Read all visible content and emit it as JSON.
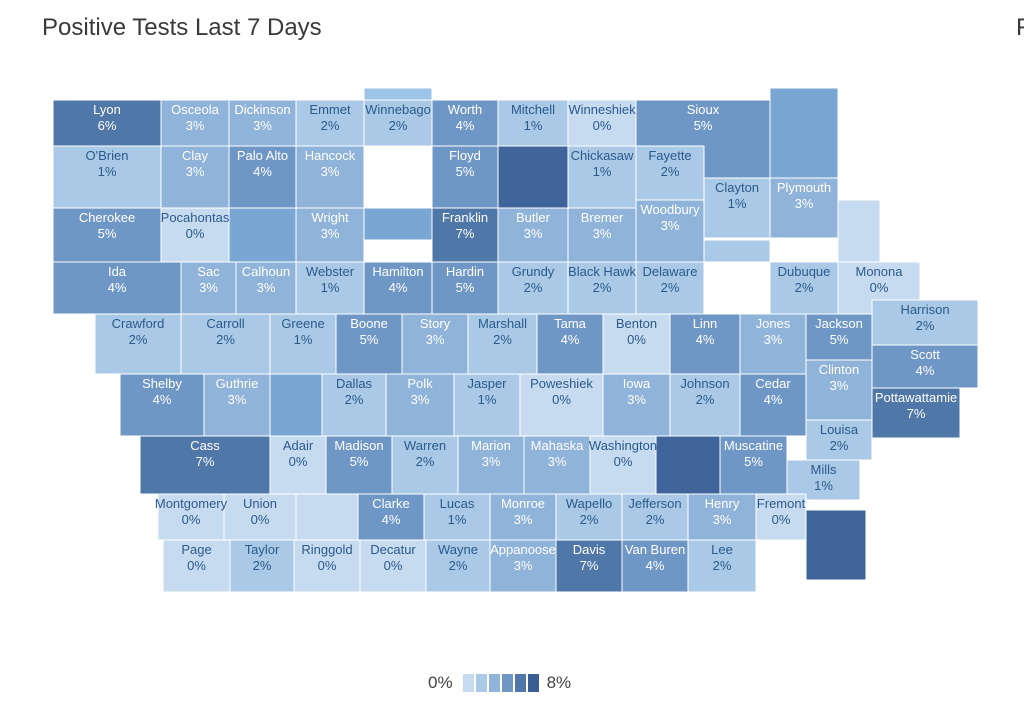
{
  "title": "Positive Tests Last 7 Days",
  "cutoff_label": "F",
  "legend": {
    "min_label": "0%",
    "max_label": "8%",
    "range": [
      0,
      8
    ],
    "colors": [
      "#c6dbef",
      "#a9c9e6",
      "#8fb3d9",
      "#6f97c6",
      "#4f77a8",
      "#3a5e93"
    ]
  },
  "colors": {
    "border": "#ffffff",
    "text_dark": "#2b5a8a",
    "text_light": "#ffffff"
  },
  "counties": [
    {
      "name": "Lyon",
      "value": 6
    },
    {
      "name": "Osceola",
      "value": 3
    },
    {
      "name": "Dickinson",
      "value": 3
    },
    {
      "name": "Emmet",
      "value": 2
    },
    {
      "name": "Winnebago",
      "value": 2
    },
    {
      "name": "Worth",
      "value": 4
    },
    {
      "name": "Mitchell",
      "value": 1
    },
    {
      "name": "Winneshiek",
      "value": 0
    },
    {
      "name": "Sioux",
      "value": 5
    },
    {
      "name": "O'Brien",
      "value": 1
    },
    {
      "name": "Clay",
      "value": 3
    },
    {
      "name": "Palo Alto",
      "value": 4
    },
    {
      "name": "Hancock",
      "value": 3
    },
    {
      "name": "Floyd",
      "value": 5
    },
    {
      "name": "Chickasaw",
      "value": 1
    },
    {
      "name": "Fayette",
      "value": 2
    },
    {
      "name": "Clayton",
      "value": 1
    },
    {
      "name": "Plymouth",
      "value": 3
    },
    {
      "name": "Cherokee",
      "value": 5
    },
    {
      "name": "Pocahontas",
      "value": 0
    },
    {
      "name": "Wright",
      "value": 3
    },
    {
      "name": "Franklin",
      "value": 7
    },
    {
      "name": "Butler",
      "value": 3
    },
    {
      "name": "Bremer",
      "value": 3
    },
    {
      "name": "Woodbury",
      "value": 3
    },
    {
      "name": "Ida",
      "value": 4
    },
    {
      "name": "Sac",
      "value": 3
    },
    {
      "name": "Calhoun",
      "value": 3
    },
    {
      "name": "Webster",
      "value": 1
    },
    {
      "name": "Hamilton",
      "value": 4
    },
    {
      "name": "Hardin",
      "value": 5
    },
    {
      "name": "Grundy",
      "value": 2
    },
    {
      "name": "Black Hawk",
      "value": 2
    },
    {
      "name": "Delaware",
      "value": 2
    },
    {
      "name": "Dubuque",
      "value": 2
    },
    {
      "name": "Monona",
      "value": 0
    },
    {
      "name": "Crawford",
      "value": 2
    },
    {
      "name": "Carroll",
      "value": 2
    },
    {
      "name": "Greene",
      "value": 1
    },
    {
      "name": "Boone",
      "value": 5
    },
    {
      "name": "Story",
      "value": 3
    },
    {
      "name": "Marshall",
      "value": 2
    },
    {
      "name": "Tama",
      "value": 4
    },
    {
      "name": "Benton",
      "value": 0
    },
    {
      "name": "Linn",
      "value": 4
    },
    {
      "name": "Jones",
      "value": 3
    },
    {
      "name": "Jackson",
      "value": 5
    },
    {
      "name": "Harrison",
      "value": 2
    },
    {
      "name": "Shelby",
      "value": 4
    },
    {
      "name": "Guthrie",
      "value": 3
    },
    {
      "name": "Dallas",
      "value": 2
    },
    {
      "name": "Polk",
      "value": 3
    },
    {
      "name": "Jasper",
      "value": 1
    },
    {
      "name": "Poweshiek",
      "value": 0
    },
    {
      "name": "Iowa",
      "value": 3
    },
    {
      "name": "Johnson",
      "value": 2
    },
    {
      "name": "Cedar",
      "value": 4
    },
    {
      "name": "Clinton",
      "value": 3
    },
    {
      "name": "Scott",
      "value": 4
    },
    {
      "name": "Pottawattamie",
      "value": 7
    },
    {
      "name": "Cass",
      "value": 7
    },
    {
      "name": "Adair",
      "value": 0
    },
    {
      "name": "Madison",
      "value": 5
    },
    {
      "name": "Warren",
      "value": 2
    },
    {
      "name": "Marion",
      "value": 3
    },
    {
      "name": "Mahaska",
      "value": 3
    },
    {
      "name": "Washington",
      "value": 0
    },
    {
      "name": "Muscatine",
      "value": 5
    },
    {
      "name": "Louisa",
      "value": 2
    },
    {
      "name": "Mills",
      "value": 1
    },
    {
      "name": "Montgomery",
      "value": 0
    },
    {
      "name": "Union",
      "value": 0
    },
    {
      "name": "Clarke",
      "value": 4
    },
    {
      "name": "Lucas",
      "value": 1
    },
    {
      "name": "Monroe",
      "value": 3
    },
    {
      "name": "Wapello",
      "value": 2
    },
    {
      "name": "Jefferson",
      "value": 2
    },
    {
      "name": "Henry",
      "value": 3
    },
    {
      "name": "Fremont",
      "value": 0
    },
    {
      "name": "Page",
      "value": 0
    },
    {
      "name": "Taylor",
      "value": 2
    },
    {
      "name": "Ringgold",
      "value": 0
    },
    {
      "name": "Decatur",
      "value": 0
    },
    {
      "name": "Wayne",
      "value": 2
    },
    {
      "name": "Appanoose",
      "value": 3
    },
    {
      "name": "Davis",
      "value": 7
    },
    {
      "name": "Van Buren",
      "value": 4
    },
    {
      "name": "Lee",
      "value": 2
    }
  ]
}
